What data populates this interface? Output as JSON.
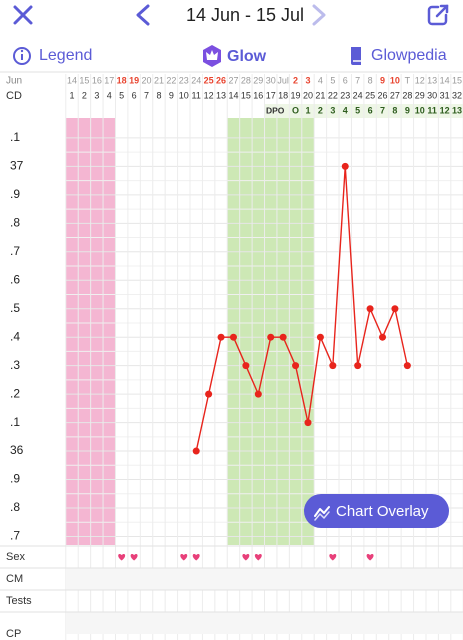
{
  "header": {
    "date_range": "14 Jun - 15 Jul"
  },
  "tabs": [
    "Legend",
    "Glow",
    "Glowpedia"
  ],
  "overlay_button": "Chart Overlay",
  "chart_data": {
    "type": "line",
    "row_labels": {
      "month": "Jun",
      "cd": "CD",
      "dpo": "DPO"
    },
    "categories": [
      "14",
      "15",
      "16",
      "17",
      "18",
      "19",
      "20",
      "21",
      "22",
      "23",
      "24",
      "25",
      "26",
      "27",
      "28",
      "29",
      "30",
      "Jul",
      "2",
      "3",
      "4",
      "5",
      "6",
      "7",
      "8",
      "9",
      "10",
      "T",
      "12",
      "13",
      "14",
      "15"
    ],
    "red_dates": [
      false,
      false,
      false,
      false,
      true,
      true,
      false,
      false,
      false,
      false,
      false,
      true,
      true,
      false,
      false,
      false,
      false,
      false,
      true,
      true,
      false,
      false,
      false,
      false,
      false,
      true,
      true,
      false,
      false,
      false,
      false,
      false
    ],
    "cd": [
      1,
      2,
      3,
      4,
      5,
      6,
      7,
      8,
      9,
      10,
      11,
      12,
      13,
      14,
      15,
      16,
      17,
      18,
      19,
      20,
      21,
      22,
      23,
      24,
      25,
      26,
      27,
      28,
      29,
      30,
      31,
      32
    ],
    "dpo": [
      null,
      null,
      null,
      null,
      null,
      null,
      null,
      null,
      null,
      null,
      null,
      null,
      null,
      null,
      null,
      null,
      null,
      null,
      "O",
      1,
      2,
      3,
      4,
      5,
      6,
      7,
      8,
      9,
      10,
      11,
      12,
      13
    ],
    "series": [
      {
        "name": "Temperature",
        "color": "#e8241c",
        "values": [
          null,
          null,
          null,
          null,
          null,
          null,
          null,
          null,
          null,
          null,
          36.0,
          36.2,
          36.4,
          36.4,
          36.3,
          36.2,
          36.4,
          36.4,
          36.3,
          36.1,
          36.4,
          36.3,
          37.0,
          36.3,
          36.5,
          36.4,
          36.5,
          36.3,
          null,
          null,
          null,
          null
        ]
      }
    ],
    "ylim": [
      35.67,
      37.17
    ],
    "yticks": [
      {
        "value": 37.1,
        "label": ".1"
      },
      37,
      {
        "value": 36.9,
        "label": ".9"
      },
      {
        "value": 36.8,
        "label": ".8"
      },
      {
        "value": 36.7,
        "label": ".7"
      },
      {
        "value": 36.6,
        "label": ".6"
      },
      {
        "value": 36.5,
        "label": ".5"
      },
      {
        "value": 36.4,
        "label": ".4"
      },
      {
        "value": 36.3,
        "label": ".3"
      },
      {
        "value": 36.2,
        "label": ".2"
      },
      {
        "value": 36.1,
        "label": ".1"
      },
      36,
      {
        "value": 35.9,
        "label": ".9"
      },
      {
        "value": 35.8,
        "label": ".8"
      },
      {
        "value": 35.7,
        "label": ".7"
      }
    ],
    "grid": true,
    "period_cd": [
      1,
      4
    ],
    "period_color": "#f4b6d2",
    "fertile_cd": [
      14,
      20
    ],
    "fertile_color": "#cde8b5",
    "log_rows": [
      {
        "name": "Sex",
        "cd": [
          5,
          6,
          10,
          11,
          15,
          16,
          22,
          25
        ]
      },
      {
        "name": "CM",
        "cd": []
      },
      {
        "name": "Tests",
        "cd": []
      },
      {
        "name": "CP",
        "cd": []
      }
    ]
  }
}
